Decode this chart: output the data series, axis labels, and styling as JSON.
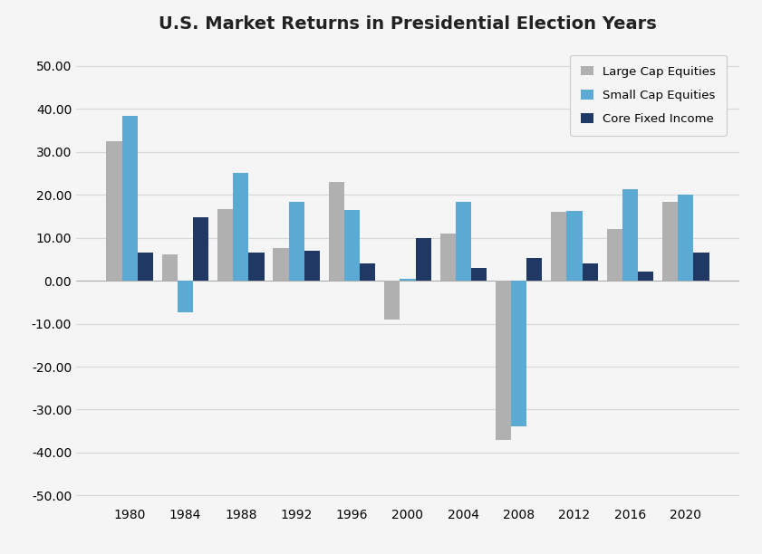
{
  "title": "U.S. Market Returns in Presidential Election Years",
  "years": [
    1980,
    1984,
    1988,
    1992,
    1996,
    2000,
    2004,
    2008,
    2012,
    2016,
    2020
  ],
  "large_cap": [
    32.4,
    6.1,
    16.6,
    7.6,
    23.0,
    -9.1,
    10.9,
    -37.0,
    16.0,
    12.0,
    18.4
  ],
  "small_cap": [
    38.4,
    -7.3,
    25.0,
    18.4,
    16.5,
    0.5,
    18.3,
    -33.8,
    16.3,
    21.3,
    20.0
  ],
  "fixed_income": [
    6.5,
    14.7,
    6.6,
    7.0,
    4.0,
    10.0,
    3.0,
    5.2,
    4.0,
    2.1,
    6.5
  ],
  "large_cap_color": "#b0b0b0",
  "small_cap_color": "#5baad4",
  "fixed_income_color": "#1f3864",
  "ylim": [
    -52,
    55
  ],
  "yticks": [
    -50.0,
    -40.0,
    -30.0,
    -20.0,
    -10.0,
    0.0,
    10.0,
    20.0,
    30.0,
    40.0,
    50.0
  ],
  "legend_labels": [
    "Large Cap Equities",
    "Small Cap Equities",
    "Core Fixed Income"
  ],
  "background_color": "#f5f5f5",
  "plot_bg_color": "#f5f5f5",
  "grid_color": "#d8d8d8",
  "bar_width": 0.28,
  "title_fontsize": 14,
  "tick_fontsize": 10
}
